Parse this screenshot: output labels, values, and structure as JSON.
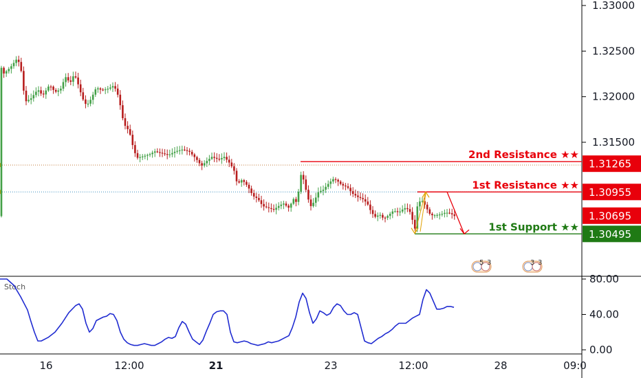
{
  "chart_data": {
    "type": "candlestick",
    "price_axis": {
      "ticks": [
        "1.33000",
        "1.32500",
        "1.32000",
        "1.31500"
      ],
      "range": [
        1.3035,
        1.3314
      ]
    },
    "time_axis": {
      "ticks": [
        {
          "label": "16",
          "bold": false
        },
        {
          "label": "12:00",
          "bold": false
        },
        {
          "label": "21",
          "bold": true
        },
        {
          "label": "23",
          "bold": false
        },
        {
          "label": "12:00",
          "bold": false
        },
        {
          "label": "28",
          "bold": false
        },
        {
          "label": "09:0",
          "bold": false
        }
      ]
    },
    "levels": [
      {
        "name": "2nd Resistance",
        "stars": "★★",
        "price": "1.31265",
        "color": "#e8000b"
      },
      {
        "name": "1st Resistance",
        "stars": "★★",
        "price": "1.30955",
        "color": "#e8000b"
      },
      {
        "name": "1st Support",
        "stars": "★★",
        "price": "1.30495",
        "color": "#1f7a14"
      }
    ],
    "last_price": {
      "value": "1.30695",
      "color": "#e8000b"
    },
    "candle_colors": {
      "up": "#43a047",
      "down": "#b71c1c"
    },
    "price_path": [
      [
        0.5,
        1.3235
      ],
      [
        5,
        1.3225
      ],
      [
        15,
        1.3232
      ],
      [
        25,
        1.3242
      ],
      [
        30,
        1.3233
      ],
      [
        35,
        1.3203
      ],
      [
        38,
        1.3195
      ],
      [
        45,
        1.3198
      ],
      [
        55,
        1.3208
      ],
      [
        62,
        1.3201
      ],
      [
        72,
        1.3213
      ],
      [
        80,
        1.3205
      ],
      [
        88,
        1.3208
      ],
      [
        95,
        1.3222
      ],
      [
        102,
        1.3215
      ],
      [
        108,
        1.3225
      ],
      [
        113,
        1.3215
      ],
      [
        120,
        1.3198
      ],
      [
        126,
        1.319
      ],
      [
        132,
        1.3197
      ],
      [
        140,
        1.321
      ],
      [
        148,
        1.3207
      ],
      [
        158,
        1.3209
      ],
      [
        165,
        1.3212
      ],
      [
        170,
        1.3206
      ],
      [
        175,
        1.319
      ],
      [
        180,
        1.317
      ],
      [
        188,
        1.3162
      ],
      [
        195,
        1.314
      ],
      [
        200,
        1.3133
      ],
      [
        210,
        1.3135
      ],
      [
        218,
        1.3137
      ],
      [
        225,
        1.314
      ],
      [
        235,
        1.3138
      ],
      [
        245,
        1.3136
      ],
      [
        255,
        1.314
      ],
      [
        265,
        1.3142
      ],
      [
        275,
        1.314
      ],
      [
        285,
        1.3132
      ],
      [
        293,
        1.3124
      ],
      [
        300,
        1.3129
      ],
      [
        308,
        1.3134
      ],
      [
        318,
        1.3131
      ],
      [
        326,
        1.3134
      ],
      [
        333,
        1.3128
      ],
      [
        340,
        1.312
      ],
      [
        345,
        1.3104
      ],
      [
        352,
        1.3109
      ],
      [
        360,
        1.3102
      ],
      [
        368,
        1.3091
      ],
      [
        375,
        1.3088
      ],
      [
        382,
        1.308
      ],
      [
        390,
        1.3078
      ],
      [
        398,
        1.3076
      ],
      [
        405,
        1.308
      ],
      [
        412,
        1.3083
      ],
      [
        420,
        1.3078
      ],
      [
        427,
        1.3088
      ],
      [
        432,
        1.3083
      ],
      [
        437,
        1.3115
      ],
      [
        442,
        1.3108
      ],
      [
        447,
        1.309
      ],
      [
        452,
        1.308
      ],
      [
        457,
        1.3085
      ],
      [
        462,
        1.3095
      ],
      [
        470,
        1.3098
      ],
      [
        478,
        1.3105
      ],
      [
        485,
        1.311
      ],
      [
        490,
        1.3108
      ],
      [
        497,
        1.3103
      ],
      [
        505,
        1.3101
      ],
      [
        512,
        1.3094
      ],
      [
        520,
        1.309
      ],
      [
        527,
        1.3088
      ],
      [
        534,
        1.3083
      ],
      [
        540,
        1.3073
      ],
      [
        546,
        1.3068
      ],
      [
        552,
        1.3071
      ],
      [
        558,
        1.3066
      ],
      [
        565,
        1.307
      ],
      [
        572,
        1.3075
      ],
      [
        580,
        1.3073
      ],
      [
        588,
        1.3078
      ],
      [
        595,
        1.3076
      ],
      [
        600,
        1.3064
      ],
      [
        603,
        1.3054
      ],
      [
        607,
        1.3081
      ],
      [
        612,
        1.3087
      ],
      [
        616,
        1.3084
      ],
      [
        620,
        1.3078
      ],
      [
        626,
        1.307
      ],
      [
        633,
        1.307
      ],
      [
        641,
        1.3071
      ],
      [
        648,
        1.3073
      ],
      [
        655,
        1.3072
      ],
      [
        661,
        1.3069
      ]
    ],
    "forecast": {
      "x": [
        607,
        650,
        675
      ],
      "y": [
        1.30955,
        1.30955,
        1.30495
      ]
    },
    "oscillator": {
      "name": "Stoch",
      "ticks": [
        "80.00",
        "40.00",
        "0.00"
      ],
      "range": [
        0,
        100
      ],
      "color": "#1f2bd1",
      "x": [
        0,
        5,
        10,
        20,
        30,
        40,
        45,
        50,
        55,
        60,
        70,
        80,
        90,
        100,
        110,
        115,
        120,
        125,
        130,
        135,
        140,
        150,
        155,
        160,
        165,
        170,
        175,
        180,
        185,
        190,
        195,
        200,
        205,
        210,
        215,
        220,
        225,
        230,
        235,
        240,
        245,
        250,
        255,
        260,
        265,
        270,
        275,
        280,
        285,
        290,
        295,
        300,
        305,
        310,
        315,
        320,
        325,
        330,
        335,
        340,
        345,
        350,
        355,
        360,
        365,
        370,
        375,
        380,
        385,
        390,
        395,
        400,
        405,
        410,
        415,
        420,
        425,
        430,
        435,
        440,
        445,
        450,
        455,
        460,
        465,
        470,
        475,
        480,
        485,
        490,
        495,
        500,
        505,
        510,
        515,
        520,
        525,
        530,
        535,
        540,
        545,
        550,
        555,
        560,
        565,
        570,
        575,
        580,
        585,
        590,
        595,
        600,
        605,
        610,
        615,
        620,
        625,
        630,
        635,
        640,
        645,
        650,
        655,
        660
      ],
      "values": [
        80,
        80,
        80,
        73,
        60,
        45,
        32,
        20,
        10,
        10,
        14,
        20,
        30,
        42,
        50,
        52,
        46,
        30,
        20,
        24,
        33,
        37,
        38,
        41,
        40,
        33,
        20,
        12,
        8,
        6,
        5,
        5,
        6,
        7,
        6,
        5,
        5,
        7,
        9,
        12,
        14,
        13,
        15,
        25,
        32,
        29,
        20,
        12,
        9,
        6,
        11,
        21,
        30,
        40,
        43,
        44,
        44,
        40,
        20,
        9,
        8,
        9,
        10,
        9,
        7,
        6,
        5,
        6,
        7,
        9,
        8,
        9,
        10,
        12,
        14,
        16,
        25,
        37,
        54,
        64,
        58,
        42,
        30,
        35,
        44,
        42,
        39,
        41,
        48,
        52,
        50,
        44,
        40,
        40,
        42,
        40,
        25,
        10,
        8,
        7,
        10,
        13,
        15,
        18,
        20,
        23,
        27,
        30,
        30,
        30,
        33,
        36,
        38,
        40,
        57,
        68,
        64,
        55,
        46,
        46,
        47,
        49,
        49,
        48
      ]
    },
    "event_markers": [
      {
        "label_a": "5",
        "label_b": "3"
      },
      {
        "label_a": "3",
        "label_b": "3"
      }
    ]
  }
}
